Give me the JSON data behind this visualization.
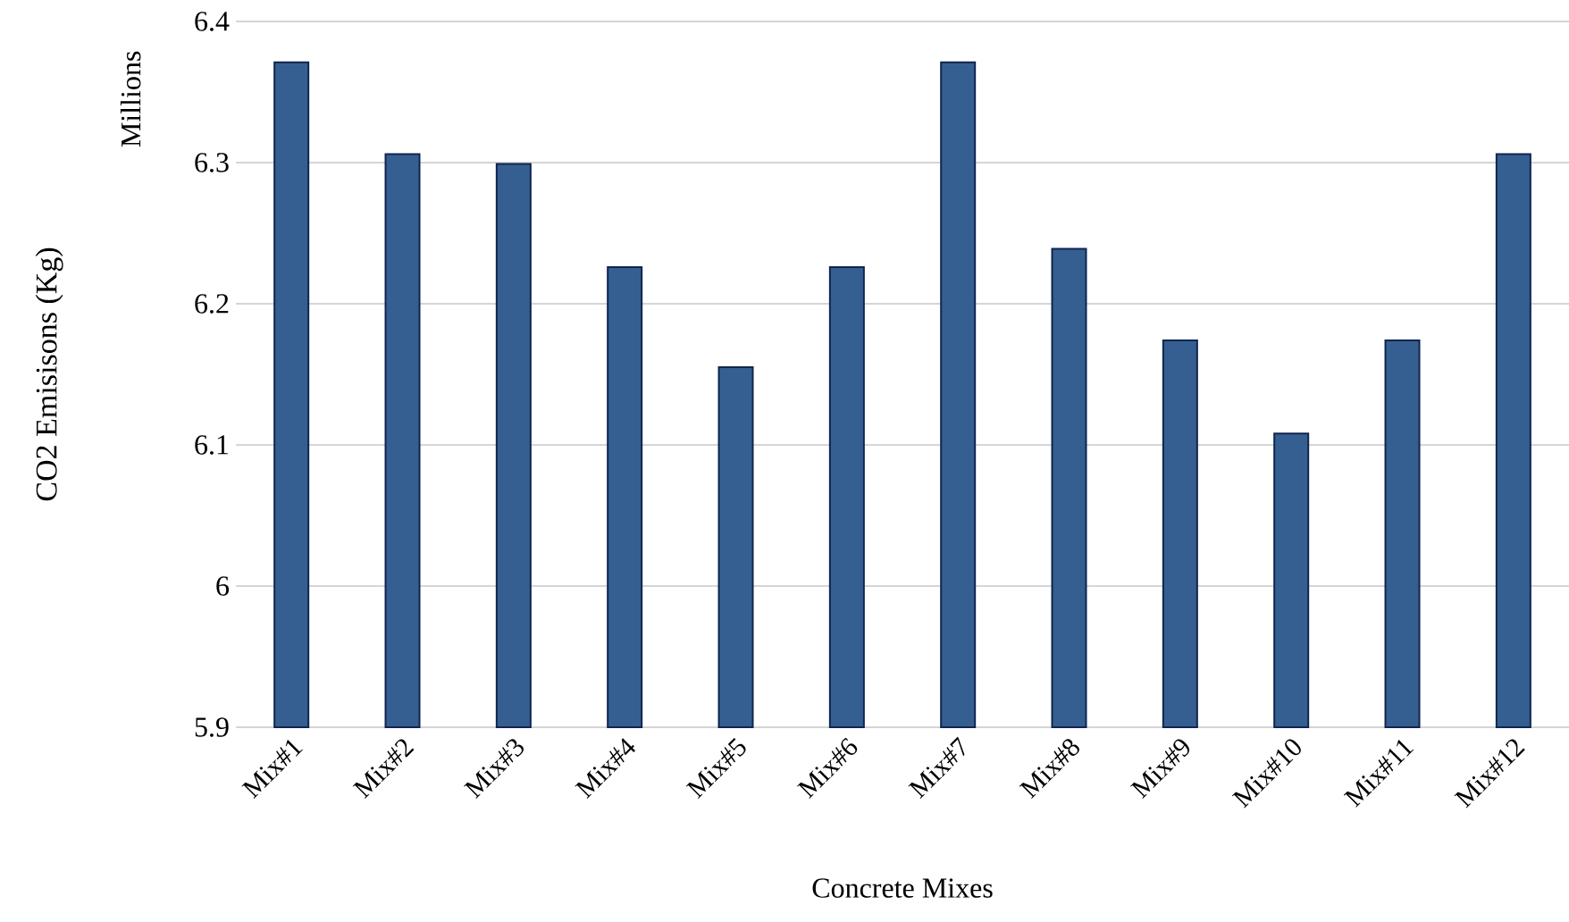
{
  "chart_data": {
    "type": "bar",
    "xlabel": "Concrete Mixes",
    "ylabel": "CO2 Emisisons (Kg)",
    "annotations": [
      "Millions"
    ],
    "categories": [
      "Mix#1",
      "Mix#2",
      "Mix#3",
      "Mix#4",
      "Mix#5",
      "Mix#6",
      "Mix#7",
      "Mix#8",
      "Mix#9",
      "Mix#10",
      "Mix#11",
      "Mix#12"
    ],
    "values": [
      6.371,
      6.306,
      6.299,
      6.226,
      6.155,
      6.226,
      6.371,
      6.239,
      6.174,
      6.108,
      6.174,
      6.306
    ],
    "color": "#365f91",
    "ylim": [
      5.9,
      6.4
    ],
    "yticks": [
      5.9,
      6,
      6.1,
      6.2,
      6.3,
      6.4
    ],
    "grid": "y"
  }
}
